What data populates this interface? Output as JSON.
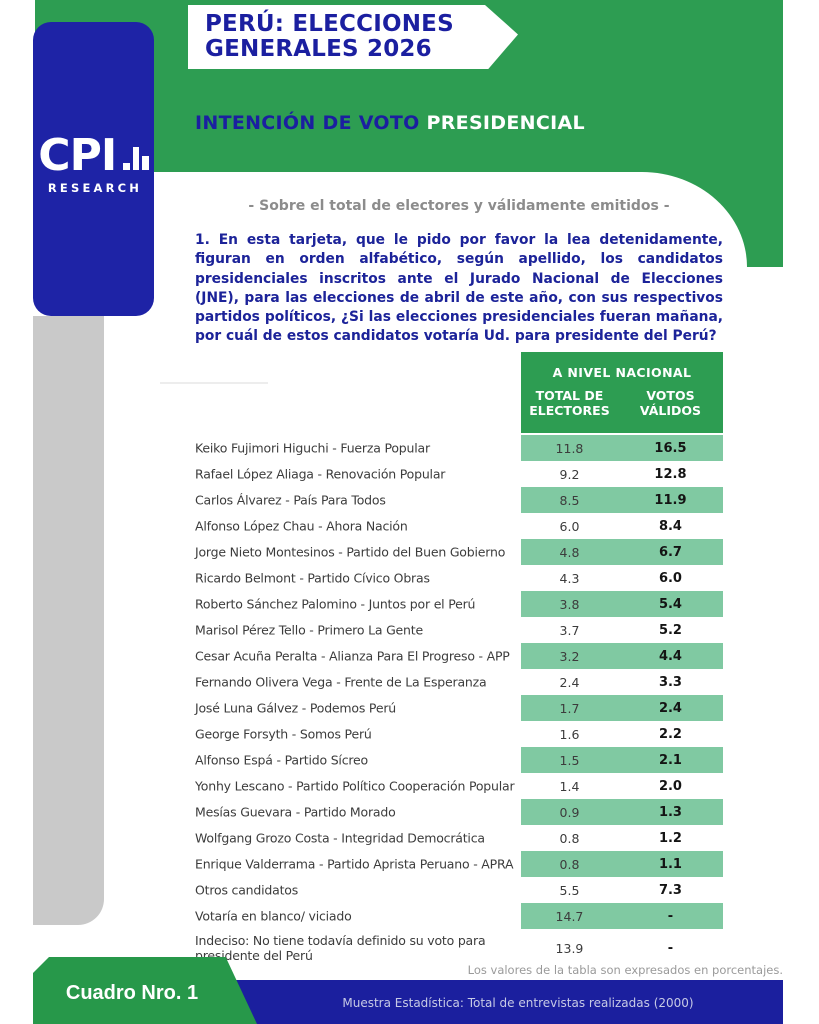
{
  "banner": {
    "line1": "PERÚ: ELECCIONES",
    "line2": "GENERALES 2026"
  },
  "logo": {
    "brand": "CPI",
    "sub": "RESEARCH"
  },
  "heading": {
    "blue": "INTENCIÓN DE VOTO",
    "white": "PRESIDENCIAL"
  },
  "subtitle": "- Sobre el total de electores y válidamente emitidos -",
  "question": "1. En esta tarjeta, que le pido por favor la lea detenidamente, figuran en orden alfabético, según apellido, los candidatos presidenciales inscritos ante el Jurado Nacional de Elecciones (JNE), para las elecciones de abril de este año, con sus respectivos partidos políticos, ¿Si las elecciones presidenciales fueran mañana, por cuál de estos candidatos votaría Ud. para presidente del Perú?",
  "table": {
    "scope_header": "A NIVEL NACIONAL",
    "columns": [
      "TOTAL DE ELECTORES",
      "VOTOS VÁLIDOS"
    ],
    "rows": [
      {
        "label": "Keiko Fujimori Higuchi - Fuerza Popular",
        "total": "11.8",
        "validos": "16.5",
        "band": true
      },
      {
        "label": "Rafael López Aliaga - Renovación Popular",
        "total": "9.2",
        "validos": "12.8",
        "band": false
      },
      {
        "label": "Carlos Álvarez - País Para Todos",
        "total": "8.5",
        "validos": "11.9",
        "band": true
      },
      {
        "label": "Alfonso López Chau - Ahora Nación",
        "total": "6.0",
        "validos": "8.4",
        "band": false
      },
      {
        "label": "Jorge Nieto Montesinos - Partido del Buen Gobierno",
        "total": "4.8",
        "validos": "6.7",
        "band": true
      },
      {
        "label": "Ricardo Belmont - Partido Cívico Obras",
        "total": "4.3",
        "validos": "6.0",
        "band": false
      },
      {
        "label": "Roberto Sánchez Palomino - Juntos por el Perú",
        "total": "3.8",
        "validos": "5.4",
        "band": true
      },
      {
        "label": "Marisol Pérez Tello - Primero La Gente",
        "total": "3.7",
        "validos": "5.2",
        "band": false
      },
      {
        "label": "Cesar Acuña Peralta - Alianza Para El Progreso - APP",
        "total": "3.2",
        "validos": "4.4",
        "band": true
      },
      {
        "label": "Fernando Olivera Vega - Frente de La Esperanza",
        "total": "2.4",
        "validos": "3.3",
        "band": false
      },
      {
        "label": "José Luna Gálvez - Podemos Perú",
        "total": "1.7",
        "validos": "2.4",
        "band": true
      },
      {
        "label": "George Forsyth - Somos Perú",
        "total": "1.6",
        "validos": "2.2",
        "band": false
      },
      {
        "label": "Alfonso Espá - Partido Sícreo",
        "total": "1.5",
        "validos": "2.1",
        "band": true
      },
      {
        "label": "Yonhy Lescano - Partido Político Cooperación Popular",
        "total": "1.4",
        "validos": "2.0",
        "band": false
      },
      {
        "label": "Mesías Guevara - Partido Morado",
        "total": "0.9",
        "validos": "1.3",
        "band": true
      },
      {
        "label": "Wolfgang Grozo Costa - Integridad Democrática",
        "total": "0.8",
        "validos": "1.2",
        "band": false
      },
      {
        "label": "Enrique Valderrama - Partido Aprista Peruano - APRA",
        "total": "0.8",
        "validos": "1.1",
        "band": true
      },
      {
        "label": "Otros candidatos",
        "total": "5.5",
        "validos": "7.3",
        "band": false
      },
      {
        "label": "Votaría en blanco/ viciado",
        "total": "14.7",
        "validos": "-",
        "band": true
      },
      {
        "label": "Indeciso: No tiene todavía definido su voto para presidente del Perú",
        "total": "13.9",
        "validos": "-",
        "band": false,
        "tall": true
      }
    ]
  },
  "notes": {
    "percent_note": "Los valores de la tabla son expresados en porcentajes."
  },
  "footer": {
    "cuadro_label": "Cuadro Nro. 1",
    "muestra": "Muestra Estadística: Total de entrevistas realizadas (2000)"
  },
  "colors": {
    "green": "#2d9d52",
    "green_dark": "#27984a",
    "light_green_band": "#80c9a2",
    "brand_blue": "#1e23a6",
    "text_blue": "#1c2399",
    "gray_strip": "#c9c9c9"
  }
}
